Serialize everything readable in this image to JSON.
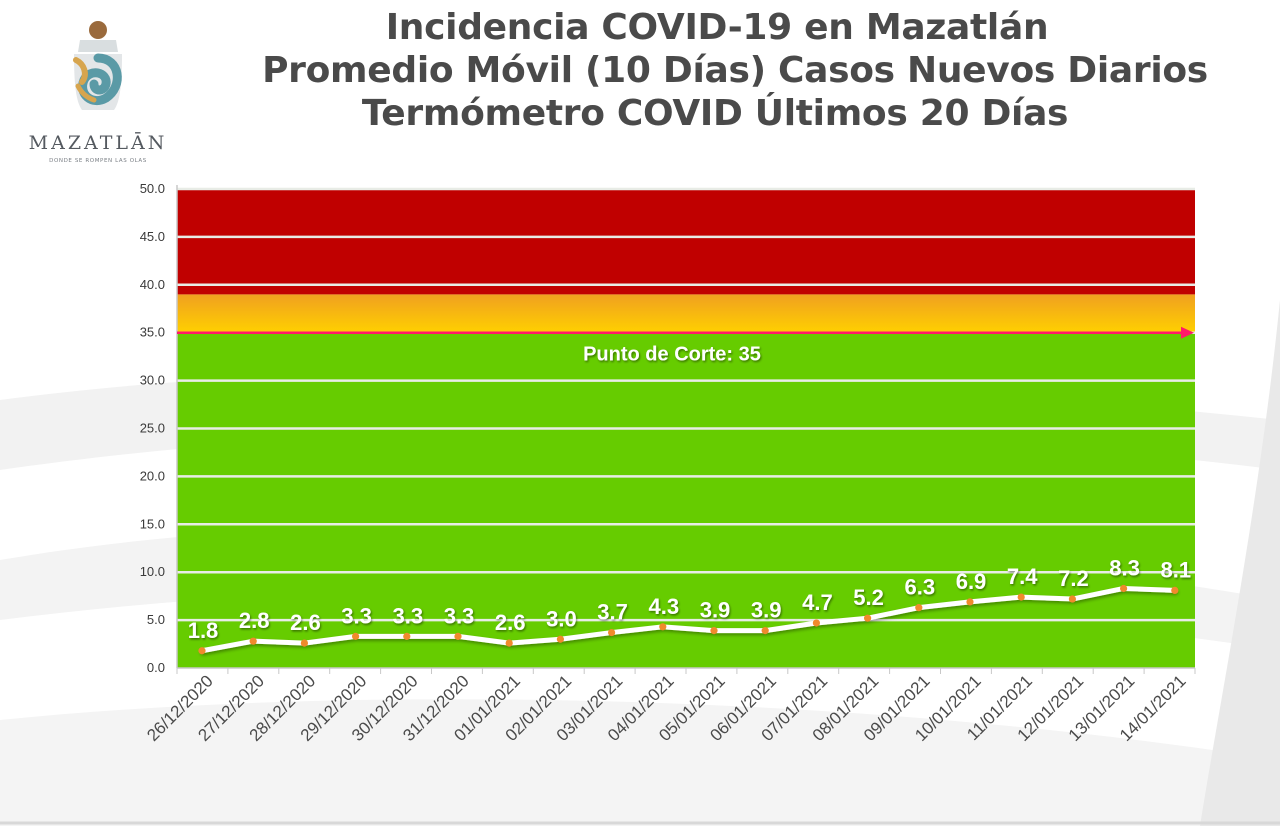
{
  "header": {
    "title_lines": [
      "Incidencia COVID-19 en Mazatlán",
      "Promedio Móvil (10 Días) Casos Nuevos Diarios",
      "Termómetro COVID Últimos 20 Días"
    ]
  },
  "logo": {
    "wordmark": "MAZATLĀN",
    "tagline": "DONDE SE ROMPEN LAS OLAS",
    "colors": {
      "teal": "#5a9aa6",
      "gold": "#d7a54e",
      "brown": "#9a6a3c"
    }
  },
  "chart_data": {
    "type": "line",
    "title": "",
    "xlabel": "",
    "ylabel": "",
    "ylim": [
      0,
      50
    ],
    "yticks": [
      "0.0",
      "5.0",
      "10.0",
      "15.0",
      "20.0",
      "25.0",
      "30.0",
      "35.0",
      "40.0",
      "45.0",
      "50.0"
    ],
    "grid": true,
    "categories": [
      "26/12/2020",
      "27/12/2020",
      "28/12/2020",
      "29/12/2020",
      "30/12/2020",
      "31/12/2020",
      "01/01/2021",
      "02/01/2021",
      "03/01/2021",
      "04/01/2021",
      "05/01/2021",
      "06/01/2021",
      "07/01/2021",
      "08/01/2021",
      "09/01/2021",
      "10/01/2021",
      "11/01/2021",
      "12/01/2021",
      "13/01/2021",
      "14/01/2021"
    ],
    "series": [
      {
        "values": [
          1.8,
          2.8,
          2.6,
          3.3,
          3.3,
          3.3,
          2.6,
          3.0,
          3.7,
          4.3,
          3.9,
          3.9,
          4.7,
          5.2,
          6.3,
          6.9,
          7.4,
          7.2,
          8.3,
          8.1
        ],
        "labels": [
          "1.8",
          "2.8",
          "2.6",
          "3.3",
          "3.3",
          "3.3",
          "2.6",
          "3.0",
          "3.7",
          "4.3",
          "3.9",
          "3.9",
          "4.7",
          "5.2",
          "6.3",
          "6.9",
          "7.4",
          "7.2",
          "8.3",
          "8.1"
        ],
        "line_color": "#ffffff",
        "marker_color": "#f08a2c"
      }
    ],
    "zones": [
      {
        "from": 0,
        "to": 35,
        "color": "#66cc00"
      },
      {
        "from": 35,
        "to": 39,
        "color": "#ffcc00",
        "gradient_to": "#f0a020"
      },
      {
        "from": 39,
        "to": 50,
        "color": "#c00000"
      }
    ],
    "cutoff": {
      "value": 35,
      "label": "Punto de Corte: 35",
      "color": "#ff1a6a"
    }
  }
}
